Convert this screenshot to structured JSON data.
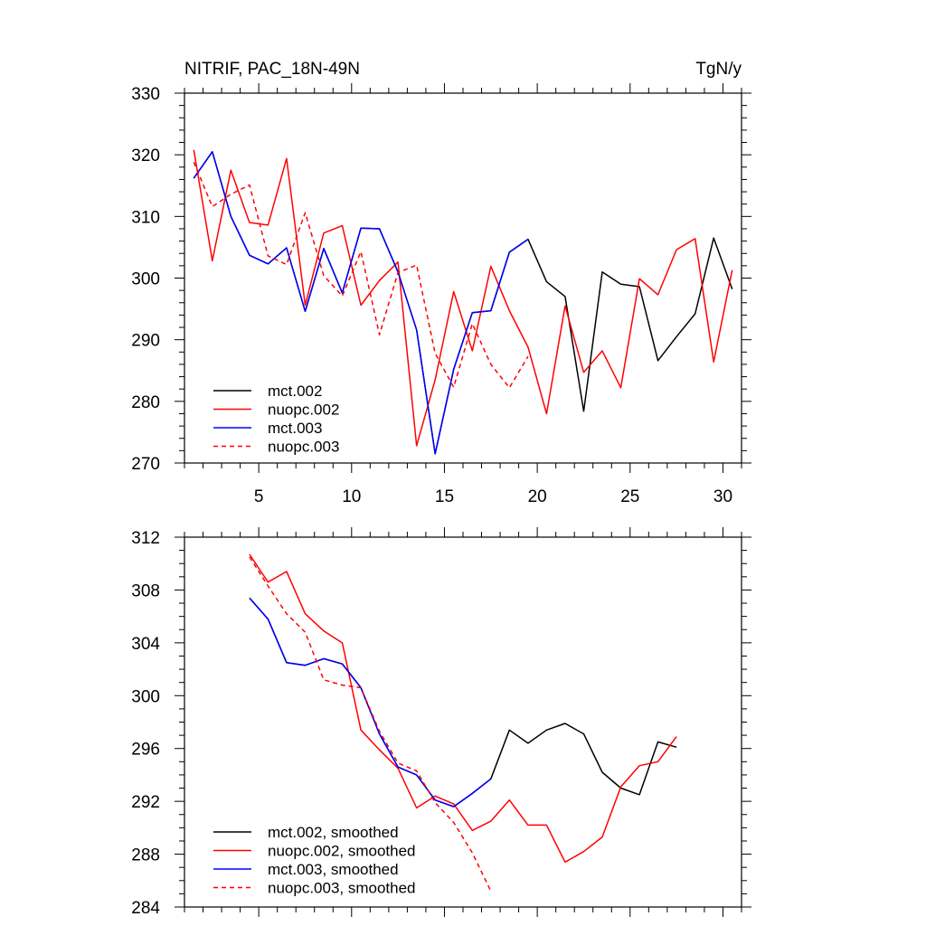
{
  "chart_data": [
    {
      "type": "line",
      "title_left": "NITRIF, PAC_18N-49N",
      "title_right": "TgN/y",
      "xlabel": "",
      "ylabel": "",
      "xlim": [
        1,
        31
      ],
      "ylim": [
        270,
        330
      ],
      "x_major_ticks": [
        5,
        10,
        15,
        20,
        25,
        30
      ],
      "x_tick_labels": [
        "5",
        "10",
        "15",
        "20",
        "25",
        "30"
      ],
      "y_major_ticks": [
        270,
        280,
        290,
        300,
        310,
        320,
        330
      ],
      "y_tick_labels": [
        "270",
        "280",
        "290",
        "300",
        "310",
        "320",
        "330"
      ],
      "legend_position": "bottom-left",
      "series": [
        {
          "name": "mct.002",
          "color": "#000000",
          "dash": "solid",
          "x": [
            1.5,
            2.5,
            3.5,
            4.5,
            5.5,
            6.5,
            7.5,
            8.5,
            9.5,
            10.5,
            11.5,
            12.5,
            13.5,
            14.5,
            15.5,
            16.5,
            17.5,
            18.5,
            19.5,
            20.5,
            21.5,
            22.5,
            23.5,
            24.5,
            25.5,
            26.5,
            27.5,
            28.5,
            29.5,
            30.5
          ],
          "values": [
            316.2,
            320.5,
            310.0,
            303.7,
            302.3,
            304.9,
            294.6,
            304.8,
            297.6,
            308.1,
            308.0,
            301.0,
            291.6,
            271.5,
            285.2,
            294.4,
            294.7,
            304.2,
            306.3,
            299.4,
            297.0,
            278.4,
            301.0,
            299.0,
            298.6,
            286.6,
            290.5,
            294.2,
            306.5,
            298.2
          ]
        },
        {
          "name": "nuopc.002",
          "color": "#ff0000",
          "dash": "solid",
          "x": [
            1.5,
            2.5,
            3.5,
            4.5,
            5.5,
            6.5,
            7.5,
            8.5,
            9.5,
            10.5,
            11.5,
            12.5,
            13.5,
            14.5,
            15.5,
            16.5,
            17.5,
            18.5,
            19.5,
            20.5,
            21.5,
            22.5,
            23.5,
            24.5,
            25.5,
            26.5,
            27.5,
            28.5,
            29.5,
            30.5
          ],
          "values": [
            320.8,
            302.8,
            317.5,
            309.0,
            308.6,
            319.4,
            295.6,
            307.3,
            308.5,
            295.6,
            299.6,
            302.6,
            272.8,
            283.5,
            297.8,
            288.2,
            301.9,
            294.7,
            288.8,
            278.0,
            295.5,
            284.7,
            288.2,
            282.2,
            299.9,
            297.3,
            304.6,
            306.4,
            286.4,
            301.3
          ]
        },
        {
          "name": "mct.003",
          "color": "#0000ff",
          "dash": "solid",
          "x": [
            1.5,
            2.5,
            3.5,
            4.5,
            5.5,
            6.5,
            7.5,
            8.5,
            9.5,
            10.5,
            11.5,
            12.5,
            13.5,
            14.5,
            15.5,
            16.5,
            17.5,
            18.5,
            19.5
          ],
          "values": [
            316.2,
            320.5,
            310.0,
            303.7,
            302.3,
            304.9,
            294.6,
            304.8,
            297.6,
            308.1,
            308.0,
            301.0,
            291.6,
            271.5,
            285.2,
            294.4,
            294.7,
            304.2,
            306.3
          ]
        },
        {
          "name": "nuopc.003",
          "color": "#ff0000",
          "dash": "dashed",
          "x": [
            1.5,
            2.5,
            3.5,
            4.5,
            5.5,
            6.5,
            7.5,
            8.5,
            9.5,
            10.5,
            11.5,
            12.5,
            13.5,
            14.5,
            15.5,
            16.5,
            17.5,
            18.5,
            19.5
          ],
          "values": [
            318.8,
            311.6,
            313.6,
            315.1,
            303.6,
            302.2,
            310.6,
            300.4,
            297.1,
            304.3,
            290.8,
            300.9,
            302.1,
            287.8,
            282.3,
            292.6,
            286.0,
            282.2,
            287.3
          ]
        }
      ]
    },
    {
      "type": "line",
      "xlabel": "",
      "ylabel": "",
      "xlim": [
        1,
        31
      ],
      "ylim": [
        284,
        312
      ],
      "x_major_ticks": [
        5,
        10,
        15,
        20,
        25,
        30
      ],
      "x_tick_labels": [],
      "y_major_ticks": [
        284,
        288,
        292,
        296,
        300,
        304,
        308,
        312
      ],
      "y_tick_labels": [
        "284",
        "288",
        "292",
        "296",
        "300",
        "304",
        "308",
        "312"
      ],
      "legend_position": "bottom-left",
      "series": [
        {
          "name": "mct.002, smoothed",
          "color": "#000000",
          "dash": "solid",
          "x": [
            4.5,
            5.5,
            6.5,
            7.5,
            8.5,
            9.5,
            10.5,
            11.5,
            12.5,
            13.5,
            14.5,
            15.5,
            16.5,
            17.5,
            18.5,
            19.5,
            20.5,
            21.5,
            22.5,
            23.5,
            24.5,
            25.5,
            26.5,
            27.5
          ],
          "values": [
            307.4,
            305.8,
            302.5,
            302.3,
            302.8,
            302.4,
            300.6,
            297.1,
            294.6,
            294.0,
            292.1,
            291.6,
            292.6,
            293.7,
            297.4,
            296.4,
            297.4,
            297.9,
            297.1,
            294.2,
            293.0,
            292.5,
            296.5,
            296.1
          ]
        },
        {
          "name": "nuopc.002, smoothed",
          "color": "#ff0000",
          "dash": "solid",
          "x": [
            4.5,
            5.5,
            6.5,
            7.5,
            8.5,
            9.5,
            10.5,
            11.5,
            12.5,
            13.5,
            14.5,
            15.5,
            16.5,
            17.5,
            18.5,
            19.5,
            20.5,
            21.5,
            22.5,
            23.5,
            24.5,
            25.5,
            26.5,
            27.5
          ],
          "values": [
            310.7,
            308.6,
            309.4,
            306.2,
            304.9,
            304.0,
            297.4,
            295.9,
            294.5,
            291.5,
            292.4,
            291.8,
            289.8,
            290.5,
            292.1,
            290.2,
            290.2,
            287.4,
            288.2,
            289.3,
            293.1,
            294.7,
            295.0,
            296.9
          ]
        },
        {
          "name": "mct.003, smoothed",
          "color": "#0000ff",
          "dash": "solid",
          "x": [
            4.5,
            5.5,
            6.5,
            7.5,
            8.5,
            9.5,
            10.5,
            11.5,
            12.5,
            13.5,
            14.5,
            15.5,
            16.5,
            17.5
          ],
          "values": [
            307.4,
            305.8,
            302.5,
            302.3,
            302.8,
            302.4,
            300.6,
            297.1,
            294.6,
            294.0,
            292.1,
            291.6,
            292.6,
            293.7
          ]
        },
        {
          "name": "nuopc.003, smoothed",
          "color": "#ff0000",
          "dash": "dashed",
          "x": [
            4.5,
            5.5,
            6.5,
            7.5,
            8.5,
            9.5,
            10.5,
            11.5,
            12.5,
            13.5,
            14.5,
            15.5,
            16.5,
            17.5
          ],
          "values": [
            310.5,
            308.3,
            306.2,
            304.8,
            301.2,
            300.8,
            300.6,
            297.3,
            294.9,
            294.3,
            291.9,
            290.4,
            288.1,
            285.2
          ]
        }
      ]
    }
  ]
}
